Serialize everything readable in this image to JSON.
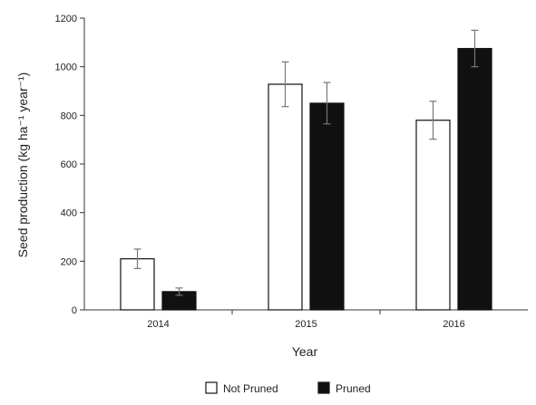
{
  "chart_data": {
    "type": "bar",
    "categories": [
      "2014",
      "2015",
      "2016"
    ],
    "series": [
      {
        "name": "Not Pruned",
        "values": [
          210,
          928,
          780
        ],
        "errors": [
          40,
          92,
          78
        ],
        "color": "#ffffff"
      },
      {
        "name": "Pruned",
        "values": [
          75,
          850,
          1075
        ],
        "errors": [
          15,
          85,
          75
        ],
        "color": "#111111"
      }
    ],
    "xlabel": "Year",
    "ylabel": "Seed production (kg ha⁻¹ year⁻¹)",
    "ylim": [
      0,
      1200
    ],
    "yticks": [
      0,
      200,
      400,
      600,
      800,
      1000,
      1200
    ],
    "grid": false,
    "legend_position": "bottom-center"
  }
}
